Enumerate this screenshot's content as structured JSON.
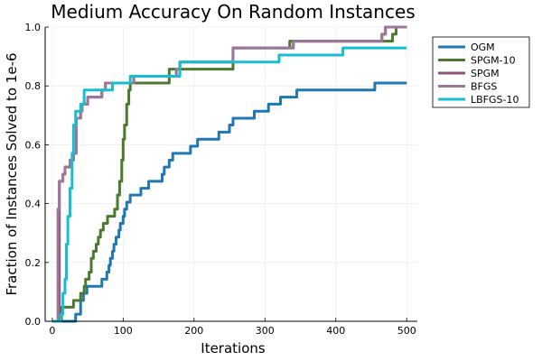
{
  "chart_data": {
    "type": "line",
    "title": "Medium Accuracy On Random Instances",
    "xlabel": "Iterations",
    "ylabel": "Fraction of Instances Solved to 1e-6",
    "xlim": [
      -10,
      515
    ],
    "ylim": [
      0,
      1
    ],
    "xticks": [
      0,
      100,
      200,
      300,
      400,
      500
    ],
    "yticks": [
      0.0,
      0.2,
      0.4,
      0.6,
      0.8,
      1.0
    ],
    "xtick_labels": [
      "0",
      "100",
      "200",
      "300",
      "400",
      "500"
    ],
    "ytick_labels": [
      "0.0",
      "0.2",
      "0.4",
      "0.6",
      "0.8",
      "1.0"
    ],
    "grid": true,
    "legend_position": "top-right outside",
    "series": [
      {
        "name": "OGM",
        "color": "#1f77b4",
        "points": [
          [
            0,
            0
          ],
          [
            33,
            0
          ],
          [
            33,
            0.024
          ],
          [
            40,
            0.024
          ],
          [
            40,
            0.071
          ],
          [
            44,
            0.071
          ],
          [
            44,
            0.095
          ],
          [
            49,
            0.095
          ],
          [
            49,
            0.119
          ],
          [
            70,
            0.119
          ],
          [
            70,
            0.143
          ],
          [
            77,
            0.143
          ],
          [
            77,
            0.167
          ],
          [
            80,
            0.167
          ],
          [
            80,
            0.19
          ],
          [
            82,
            0.19
          ],
          [
            82,
            0.214
          ],
          [
            85,
            0.214
          ],
          [
            85,
            0.238
          ],
          [
            87,
            0.238
          ],
          [
            87,
            0.262
          ],
          [
            90,
            0.262
          ],
          [
            90,
            0.286
          ],
          [
            94,
            0.286
          ],
          [
            94,
            0.31
          ],
          [
            96,
            0.31
          ],
          [
            96,
            0.333
          ],
          [
            100,
            0.333
          ],
          [
            100,
            0.357
          ],
          [
            102,
            0.357
          ],
          [
            102,
            0.381
          ],
          [
            105,
            0.381
          ],
          [
            105,
            0.405
          ],
          [
            110,
            0.405
          ],
          [
            110,
            0.429
          ],
          [
            125,
            0.429
          ],
          [
            125,
            0.452
          ],
          [
            136,
            0.452
          ],
          [
            136,
            0.476
          ],
          [
            155,
            0.476
          ],
          [
            155,
            0.5
          ],
          [
            158,
            0.5
          ],
          [
            158,
            0.524
          ],
          [
            165,
            0.524
          ],
          [
            165,
            0.548
          ],
          [
            170,
            0.548
          ],
          [
            170,
            0.571
          ],
          [
            195,
            0.571
          ],
          [
            195,
            0.595
          ],
          [
            205,
            0.595
          ],
          [
            205,
            0.619
          ],
          [
            235,
            0.619
          ],
          [
            235,
            0.643
          ],
          [
            250,
            0.643
          ],
          [
            250,
            0.667
          ],
          [
            255,
            0.667
          ],
          [
            255,
            0.69
          ],
          [
            285,
            0.69
          ],
          [
            285,
            0.714
          ],
          [
            305,
            0.714
          ],
          [
            305,
            0.738
          ],
          [
            322,
            0.738
          ],
          [
            322,
            0.762
          ],
          [
            345,
            0.762
          ],
          [
            345,
            0.786
          ],
          [
            372,
            0.786
          ],
          [
            372,
            0.786
          ],
          [
            375,
            0.786
          ],
          [
            375,
            0.786
          ],
          [
            375,
            0.786
          ],
          [
            375,
            0.786
          ],
          [
            377,
            0.786
          ],
          [
            377,
            0.786
          ],
          [
            378,
            0.786
          ],
          [
            378,
            0.786
          ],
          [
            378,
            0.786
          ],
          [
            378,
            0.786
          ],
          [
            380,
            0.786
          ],
          [
            380,
            0.786
          ],
          [
            380,
            0.786
          ],
          [
            380,
            0.786
          ],
          [
            382,
            0.786
          ],
          [
            382,
            0.786
          ],
          [
            380,
            0.786
          ],
          [
            380,
            0.786
          ],
          [
            382,
            0.786
          ],
          [
            382,
            0.786
          ],
          [
            383,
            0.786
          ],
          [
            383,
            0.786
          ],
          [
            385,
            0.786
          ],
          [
            385,
            0.786
          ],
          [
            387,
            0.786
          ],
          [
            387,
            0.786
          ],
          [
            390,
            0.786
          ],
          [
            390,
            0.786
          ],
          [
            385,
            0.786
          ],
          [
            385,
            0.786
          ],
          [
            387,
            0.786
          ],
          [
            387,
            0.786
          ],
          [
            388,
            0.786
          ],
          [
            388,
            0.786
          ],
          [
            390,
            0.786
          ],
          [
            390,
            0.786
          ],
          [
            393,
            0.786
          ],
          [
            393,
            0.786
          ],
          [
            395,
            0.786
          ],
          [
            395,
            0.786
          ],
          [
            380,
            0.786
          ],
          [
            380,
            0.786
          ],
          [
            395,
            0.786
          ],
          [
            395,
            0.786
          ],
          [
            396,
            0.786
          ],
          [
            396,
            0.786
          ],
          [
            397,
            0.786
          ],
          [
            397,
            0.786
          ],
          [
            400,
            0.786
          ],
          [
            400,
            0.786
          ],
          [
            455,
            0.786
          ],
          [
            455,
            0.81
          ],
          [
            500,
            0.81
          ]
        ]
      },
      {
        "name": "SPGM-10",
        "color": "#4b7a2f",
        "points": [
          [
            0,
            0
          ],
          [
            13,
            0
          ],
          [
            13,
            0.048
          ],
          [
            30,
            0.048
          ],
          [
            30,
            0.071
          ],
          [
            40,
            0.071
          ],
          [
            40,
            0.095
          ],
          [
            45,
            0.095
          ],
          [
            45,
            0.119
          ],
          [
            47,
            0.119
          ],
          [
            47,
            0.143
          ],
          [
            52,
            0.143
          ],
          [
            52,
            0.167
          ],
          [
            55,
            0.167
          ],
          [
            55,
            0.214
          ],
          [
            58,
            0.214
          ],
          [
            58,
            0.238
          ],
          [
            62,
            0.238
          ],
          [
            62,
            0.262
          ],
          [
            65,
            0.262
          ],
          [
            65,
            0.286
          ],
          [
            68,
            0.286
          ],
          [
            68,
            0.31
          ],
          [
            72,
            0.31
          ],
          [
            72,
            0.333
          ],
          [
            78,
            0.333
          ],
          [
            78,
            0.357
          ],
          [
            88,
            0.357
          ],
          [
            88,
            0.381
          ],
          [
            92,
            0.381
          ],
          [
            92,
            0.429
          ],
          [
            95,
            0.429
          ],
          [
            95,
            0.476
          ],
          [
            98,
            0.476
          ],
          [
            98,
            0.548
          ],
          [
            100,
            0.548
          ],
          [
            100,
            0.619
          ],
          [
            102,
            0.619
          ],
          [
            102,
            0.667
          ],
          [
            105,
            0.667
          ],
          [
            105,
            0.738
          ],
          [
            108,
            0.738
          ],
          [
            108,
            0.786
          ],
          [
            110,
            0.786
          ],
          [
            110,
            0.81
          ],
          [
            165,
            0.81
          ],
          [
            165,
            0.857
          ],
          [
            255,
            0.857
          ],
          [
            255,
            0.929
          ],
          [
            335,
            0.929
          ],
          [
            335,
            0.952
          ],
          [
            480,
            0.952
          ],
          [
            480,
            0.976
          ],
          [
            485,
            0.976
          ],
          [
            485,
            1.0
          ],
          [
            500,
            1.0
          ]
        ]
      },
      {
        "name": "SPGM",
        "color": "#8b5478",
        "points": [
          [
            0,
            0
          ],
          [
            10,
            0
          ],
          [
            10,
            0.476
          ],
          [
            15,
            0.476
          ],
          [
            15,
            0.5
          ],
          [
            18,
            0.5
          ],
          [
            18,
            0.524
          ],
          [
            25,
            0.524
          ],
          [
            25,
            0.548
          ],
          [
            30,
            0.548
          ],
          [
            30,
            0.571
          ],
          [
            34,
            0.571
          ],
          [
            34,
            0.69
          ],
          [
            40,
            0.69
          ],
          [
            40,
            0.714
          ],
          [
            42,
            0.714
          ],
          [
            42,
            0.738
          ],
          [
            50,
            0.738
          ],
          [
            50,
            0.762
          ],
          [
            70,
            0.762
          ],
          [
            70,
            0.786
          ],
          [
            75,
            0.786
          ],
          [
            75,
            0.81
          ],
          [
            115,
            0.81
          ],
          [
            115,
            0.833
          ],
          [
            175,
            0.833
          ],
          [
            175,
            0.857
          ],
          [
            180,
            0.857
          ],
          [
            180,
            0.881
          ],
          [
            255,
            0.881
          ],
          [
            255,
            0.929
          ],
          [
            340,
            0.929
          ],
          [
            340,
            0.952
          ],
          [
            465,
            0.952
          ],
          [
            465,
            0.976
          ],
          [
            470,
            0.976
          ],
          [
            470,
            1.0
          ],
          [
            500,
            1.0
          ]
        ]
      },
      {
        "name": "BFGS",
        "color": "#9b7898",
        "points": [
          [
            0,
            0
          ],
          [
            8,
            0
          ],
          [
            8,
            0.381
          ],
          [
            10,
            0.381
          ],
          [
            10,
            0.476
          ],
          [
            15,
            0.476
          ],
          [
            15,
            0.5
          ],
          [
            18,
            0.5
          ],
          [
            18,
            0.524
          ],
          [
            25,
            0.524
          ],
          [
            25,
            0.548
          ],
          [
            30,
            0.548
          ],
          [
            30,
            0.571
          ],
          [
            34,
            0.571
          ],
          [
            34,
            0.69
          ],
          [
            40,
            0.69
          ],
          [
            40,
            0.714
          ],
          [
            42,
            0.714
          ],
          [
            42,
            0.738
          ],
          [
            50,
            0.738
          ],
          [
            50,
            0.762
          ],
          [
            70,
            0.762
          ],
          [
            70,
            0.786
          ],
          [
            75,
            0.786
          ],
          [
            75,
            0.81
          ],
          [
            115,
            0.81
          ],
          [
            115,
            0.833
          ],
          [
            175,
            0.833
          ],
          [
            175,
            0.857
          ],
          [
            180,
            0.857
          ],
          [
            180,
            0.881
          ],
          [
            255,
            0.881
          ],
          [
            255,
            0.929
          ],
          [
            340,
            0.929
          ],
          [
            340,
            0.952
          ],
          [
            465,
            0.952
          ],
          [
            465,
            0.976
          ],
          [
            470,
            0.976
          ],
          [
            470,
            1.0
          ],
          [
            500,
            1.0
          ]
        ]
      },
      {
        "name": "LBFGS-10",
        "color": "#17becf",
        "points": [
          [
            0,
            0
          ],
          [
            12,
            0
          ],
          [
            12,
            0.024
          ],
          [
            15,
            0.024
          ],
          [
            15,
            0.095
          ],
          [
            18,
            0.095
          ],
          [
            18,
            0.143
          ],
          [
            20,
            0.143
          ],
          [
            20,
            0.262
          ],
          [
            22,
            0.262
          ],
          [
            22,
            0.357
          ],
          [
            25,
            0.357
          ],
          [
            25,
            0.452
          ],
          [
            28,
            0.452
          ],
          [
            28,
            0.571
          ],
          [
            30,
            0.571
          ],
          [
            30,
            0.667
          ],
          [
            33,
            0.667
          ],
          [
            33,
            0.714
          ],
          [
            40,
            0.714
          ],
          [
            40,
            0.738
          ],
          [
            45,
            0.738
          ],
          [
            45,
            0.786
          ],
          [
            85,
            0.786
          ],
          [
            85,
            0.81
          ],
          [
            110,
            0.81
          ],
          [
            110,
            0.833
          ],
          [
            180,
            0.833
          ],
          [
            180,
            0.881
          ],
          [
            320,
            0.881
          ],
          [
            320,
            0.905
          ],
          [
            410,
            0.905
          ],
          [
            410,
            0.929
          ],
          [
            500,
            0.929
          ]
        ]
      }
    ]
  }
}
